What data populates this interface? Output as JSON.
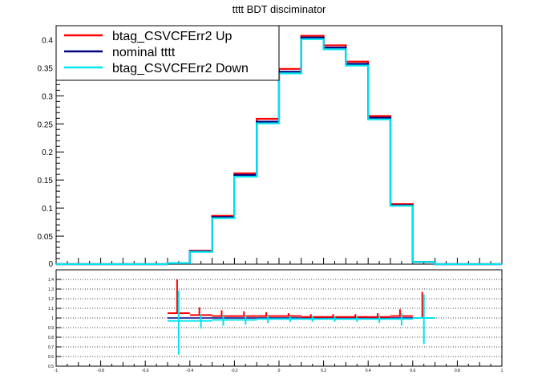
{
  "chart_data": [
    {
      "type": "line",
      "title": "tttt BDT disciminator",
      "xlim": [
        -1,
        1
      ],
      "ylim": [
        0,
        0.425
      ],
      "y_ticks": [
        "0.05",
        "0.1",
        "0.15",
        "0.2",
        "0.25",
        "0.3",
        "0.35",
        "0.4"
      ],
      "y_zero_label": "0",
      "bin_edges": [
        -0.5,
        -0.4,
        -0.3,
        -0.2,
        -0.1,
        0.0,
        0.1,
        0.2,
        0.3,
        0.4,
        0.5,
        0.6,
        0.7
      ],
      "series": [
        {
          "name": "btag_CSVCFErr2 Up",
          "color": "#ff0000",
          "values": [
            0.002,
            0.024,
            0.086,
            0.162,
            0.259,
            0.348,
            0.407,
            0.39,
            0.361,
            0.264,
            0.107,
            0.004
          ]
        },
        {
          "name": "nominal tttt",
          "color": "#000080",
          "values": [
            0.002,
            0.023,
            0.084,
            0.159,
            0.254,
            0.343,
            0.404,
            0.386,
            0.357,
            0.261,
            0.105,
            0.004
          ]
        },
        {
          "name": "btag_CSVCFErr2 Down",
          "color": "#00e5ee",
          "values": [
            0.002,
            0.022,
            0.082,
            0.156,
            0.251,
            0.34,
            0.401,
            0.383,
            0.354,
            0.258,
            0.104,
            0.004
          ]
        }
      ],
      "legend": "top-left"
    },
    {
      "type": "scatter",
      "xlim": [
        -1,
        1
      ],
      "ylim": [
        0.5,
        1.5
      ],
      "x_ticks": [
        "-1",
        "-0.8",
        "-0.6",
        "-0.4",
        "-0.2",
        "0",
        "0.2",
        "0.4",
        "0.6",
        "0.8",
        "1"
      ],
      "y_ticks": [
        "0.5",
        "0.6",
        "0.7",
        "0.8",
        "0.9",
        "1",
        "1.1",
        "1.2",
        "1.3",
        "1.4"
      ],
      "grid": true,
      "series": [
        {
          "name": "btag_CSVCFErr2 Up",
          "color": "#ff0000",
          "x": [
            -0.45,
            -0.35,
            -0.25,
            -0.15,
            -0.05,
            0.05,
            0.15,
            0.25,
            0.35,
            0.45,
            0.55,
            0.65
          ],
          "y": [
            1.05,
            1.03,
            1.02,
            1.02,
            1.02,
            1.02,
            1.01,
            1.01,
            1.01,
            1.01,
            1.02,
            1.0
          ],
          "err": [
            0.35,
            0.08,
            0.06,
            0.05,
            0.04,
            0.03,
            0.03,
            0.03,
            0.03,
            0.04,
            0.07,
            0.27
          ]
        },
        {
          "name": "btag_CSVCFErr2 Down",
          "color": "#00e5ee",
          "x": [
            -0.45,
            -0.35,
            -0.25,
            -0.15,
            -0.05,
            0.05,
            0.15,
            0.25,
            0.35,
            0.45,
            0.55,
            0.65
          ],
          "y": [
            0.97,
            0.97,
            0.98,
            0.98,
            0.99,
            0.99,
            0.99,
            0.99,
            0.99,
            0.99,
            0.99,
            1.0
          ],
          "err": [
            0.35,
            0.08,
            0.06,
            0.05,
            0.04,
            0.03,
            0.03,
            0.03,
            0.03,
            0.04,
            0.07,
            0.27
          ]
        }
      ]
    }
  ]
}
